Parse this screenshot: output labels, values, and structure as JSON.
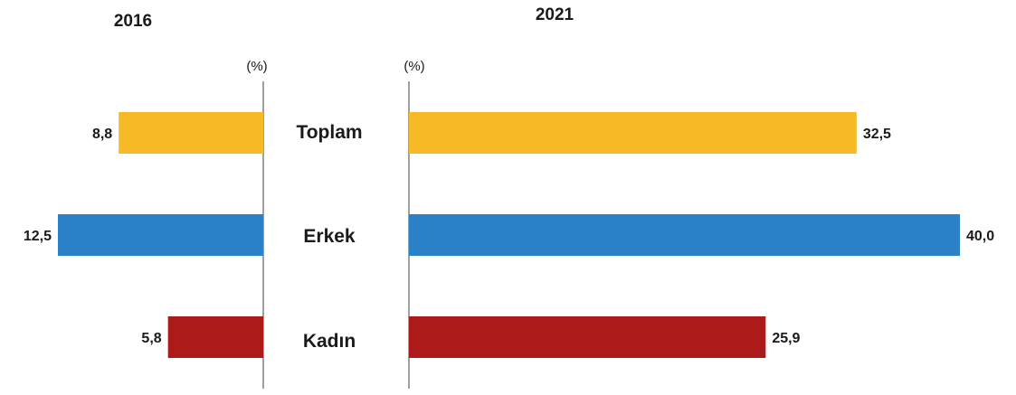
{
  "chart_data": {
    "type": "bar",
    "orientation": "horizontal",
    "categories": [
      "Toplam",
      "Erkek",
      "Kadın"
    ],
    "unit": "(%)",
    "panels": [
      {
        "title": "2016",
        "direction": "left",
        "values": [
          8.8,
          12.5,
          5.8
        ],
        "value_labels": [
          "8,8",
          "12,5",
          "5,8"
        ],
        "xlim": [
          0,
          12.5
        ]
      },
      {
        "title": "2021",
        "direction": "right",
        "values": [
          32.5,
          40.0,
          25.9
        ],
        "value_labels": [
          "32,5",
          "40,0",
          "25,9"
        ],
        "xlim": [
          0,
          40.0
        ]
      }
    ],
    "colors": [
      "#f7b926",
      "#2a81c8",
      "#ad1a1a"
    ],
    "grid": false,
    "legend": "none"
  }
}
